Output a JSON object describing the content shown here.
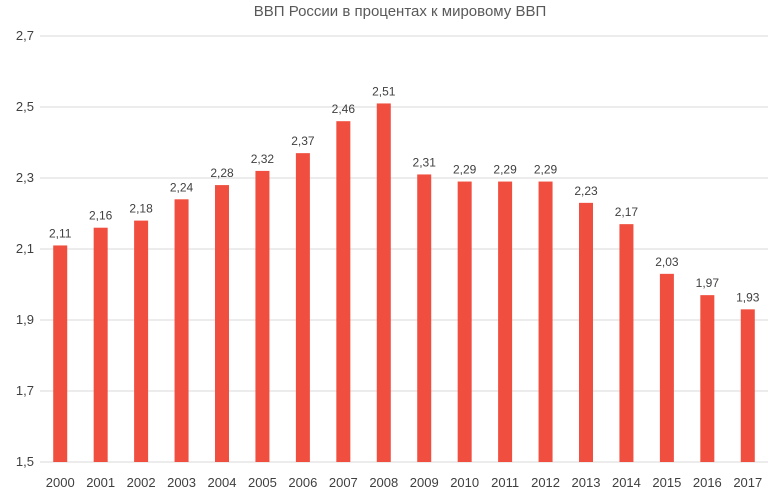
{
  "chart_data": {
    "type": "bar",
    "title": "ВВП России в процентах к мировому ВВП",
    "xlabel": "",
    "ylabel": "",
    "categories": [
      "2000",
      "2001",
      "2002",
      "2003",
      "2004",
      "2005",
      "2006",
      "2007",
      "2008",
      "2009",
      "2010",
      "2011",
      "2012",
      "2013",
      "2014",
      "2015",
      "2016",
      "2017"
    ],
    "values": [
      2.11,
      2.16,
      2.18,
      2.24,
      2.28,
      2.32,
      2.37,
      2.46,
      2.51,
      2.31,
      2.29,
      2.29,
      2.29,
      2.23,
      2.17,
      2.03,
      1.97,
      1.93
    ],
    "value_labels": [
      "2,11",
      "2,16",
      "2,18",
      "2,24",
      "2,28",
      "2,32",
      "2,37",
      "2,46",
      "2,51",
      "2,31",
      "2,29",
      "2,29",
      "2,29",
      "2,23",
      "2,17",
      "2,03",
      "1,97",
      "1,93"
    ],
    "ylim": [
      1.5,
      2.7
    ],
    "yticks": [
      1.5,
      1.7,
      1.9,
      2.1,
      2.3,
      2.5,
      2.7
    ],
    "ytick_labels": [
      "1,5",
      "1,7",
      "1,9",
      "2,1",
      "2,3",
      "2,5",
      "2,7"
    ],
    "grid": true,
    "legend": "none",
    "colors": {
      "bar": "#f04e3e",
      "grid": "#d9d9d9",
      "text": "#404040",
      "title": "#595959"
    }
  }
}
